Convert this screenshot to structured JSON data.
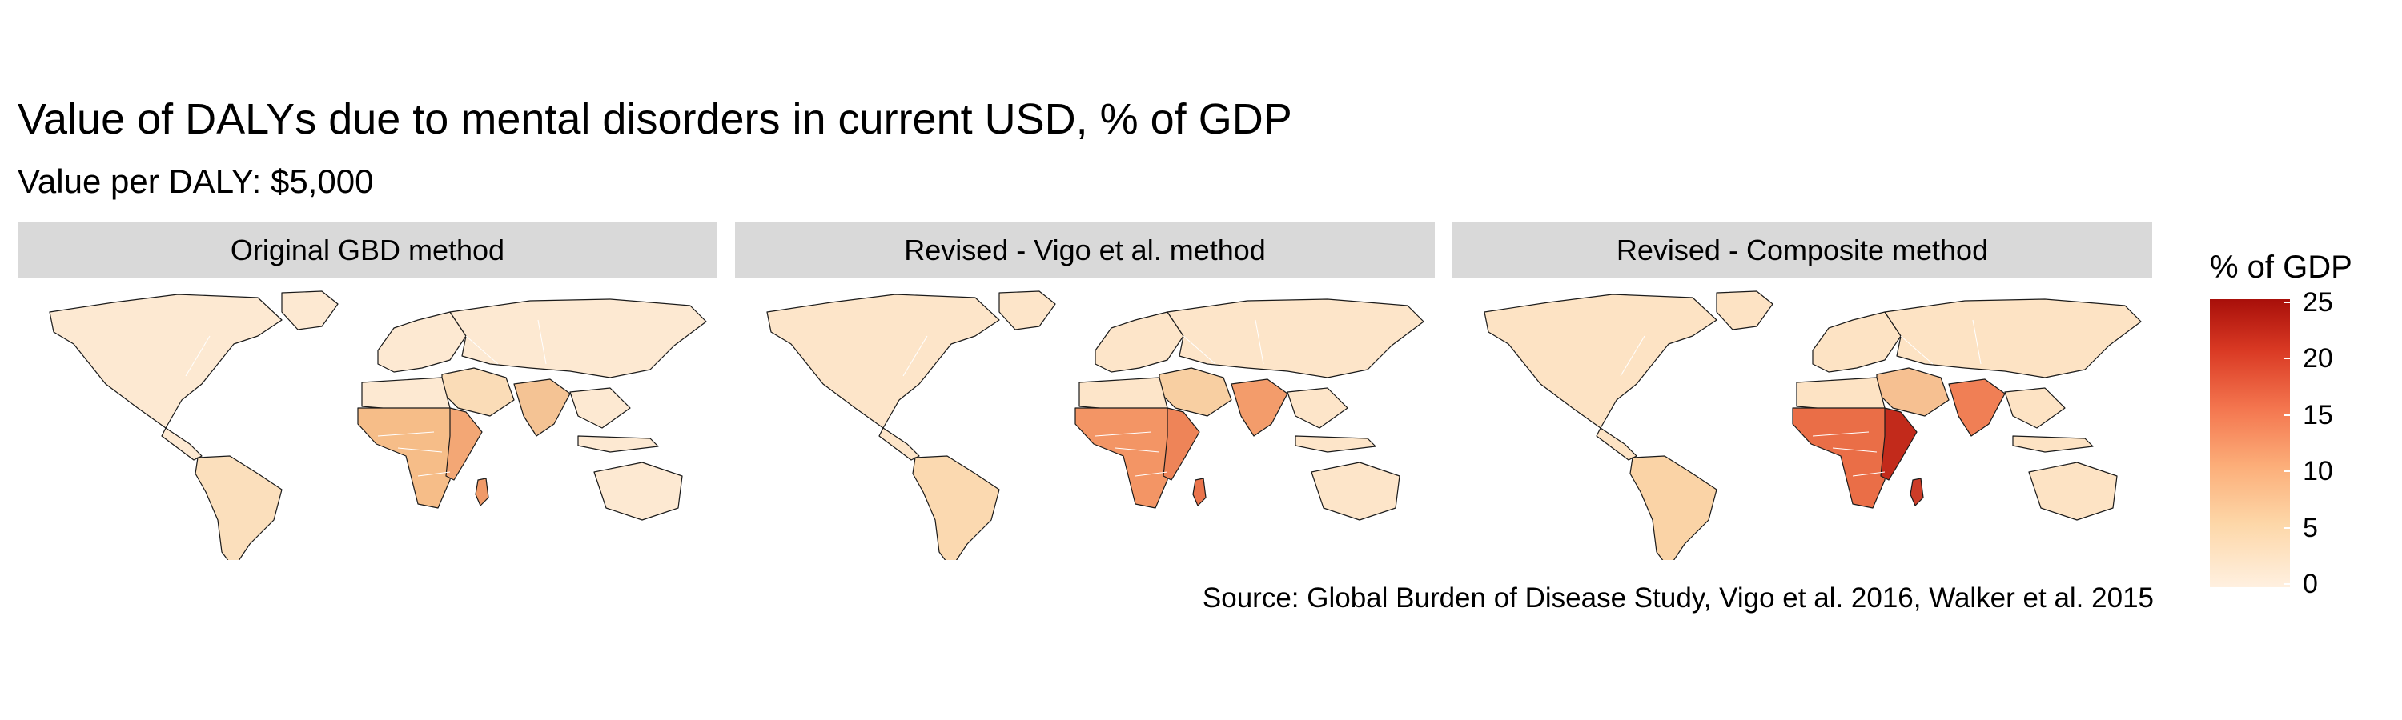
{
  "title": "Value of DALYs due to mental disorders in current USD, % of GDP",
  "subtitle": "Value per DALY: $5,000",
  "panels": [
    {
      "label": "Original GBD method",
      "africa": "#f6bd88",
      "eastafrica": "#f3a775",
      "madagascar": "#f09a68",
      "india": "#f4c394",
      "mideast": "#fadcb7",
      "other": "#fde9d2",
      "americas_south": "#fbdfbc"
    },
    {
      "label": "Revised - Vigo et al. method",
      "africa": "#f39565",
      "eastafrica": "#ee8458",
      "madagascar": "#ea744c",
      "india": "#f39c6b",
      "mideast": "#f8cfa2",
      "other": "#fde5c9",
      "americas_south": "#fbd9b0"
    },
    {
      "label": "Revised - Composite method",
      "africa": "#ea6e47",
      "eastafrica": "#c22a1b",
      "madagascar": "#cc3c28",
      "india": "#f07f55",
      "mideast": "#f6c091",
      "other": "#fde3c4",
      "americas_south": "#fad3a6"
    }
  ],
  "legend": {
    "title": "% of GDP",
    "ticks": [
      "25",
      "20",
      "15",
      "10",
      "5",
      "0"
    ],
    "range": [
      0,
      25
    ]
  },
  "source": "Source: Global Burden of Disease Study, Vigo et al. 2016, Walker et al. 2015"
}
